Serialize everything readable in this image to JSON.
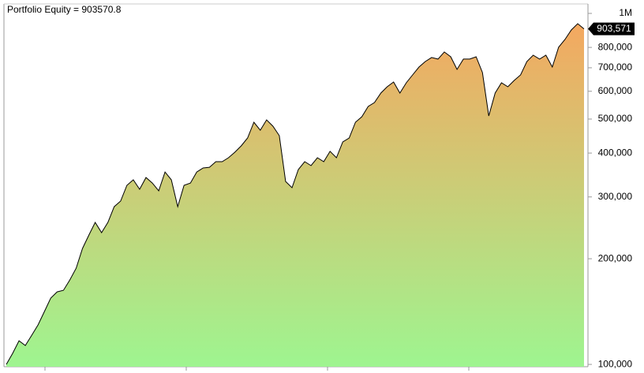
{
  "chart_data": {
    "type": "line",
    "title": "Portfolio Equity = 903570.8",
    "values": [
      100000,
      107500,
      116800,
      113200,
      121100,
      129600,
      141500,
      154500,
      160900,
      162600,
      173900,
      188000,
      213900,
      233600,
      253800,
      237300,
      253800,
      281400,
      291900,
      323700,
      335600,
      315400,
      340800,
      328700,
      312200,
      353400,
      335600,
      281400,
      323700,
      328700,
      353400,
      362700,
      364500,
      378000,
      378000,
      388000,
      402400,
      419400,
      441600,
      489700,
      464800,
      497300,
      477100,
      448500,
      332000,
      318700,
      359000,
      378000,
      368400,
      388000,
      378000,
      404500,
      388000,
      430300,
      441600,
      489700,
      507800,
      543000,
      557300,
      592900,
      618000,
      637500,
      592900,
      634200,
      668000,
      703500,
      729500,
      748700,
      741000,
      776300,
      752500,
      692600,
      741000,
      741000,
      752500,
      678500,
      510400,
      592900,
      634200,
      618000,
      644200,
      668000,
      729500,
      760300,
      741000,
      760300,
      703500,
      800800,
      843000,
      897000,
      935000,
      903570.8
    ],
    "value_labels": [
      null,
      null,
      null,
      null,
      null,
      null,
      null,
      null,
      null,
      null,
      null,
      null,
      null,
      null,
      null,
      null,
      null,
      null,
      null,
      null,
      null,
      null,
      null,
      null,
      null,
      null,
      null,
      null,
      null,
      null,
      null,
      null,
      null,
      null,
      null,
      null,
      null,
      null,
      null,
      null,
      null,
      null,
      null,
      null,
      null,
      null,
      null,
      null,
      null,
      null,
      null,
      null,
      null,
      null,
      null,
      null,
      null,
      null,
      null,
      null,
      null,
      null,
      null,
      null,
      null,
      null,
      null,
      null,
      null,
      null,
      null,
      null,
      null,
      null,
      null,
      null,
      null,
      null,
      null,
      null,
      null,
      null,
      null,
      null,
      null,
      null,
      null,
      null,
      null,
      null,
      null,
      "903,571"
    ],
    "color": "#000000",
    "fill_top": "#f4a860",
    "fill_bottom": "#9ef590",
    "log_scale": true,
    "ylim": [
      98500,
      1064000
    ],
    "yticks": [
      {
        "value": 100000,
        "label": "100,000"
      },
      {
        "value": 200000,
        "label": "200,000"
      },
      {
        "value": 300000,
        "label": "300,000"
      },
      {
        "value": 400000,
        "label": "400,000"
      },
      {
        "value": 500000,
        "label": "500,000"
      },
      {
        "value": 600000,
        "label": "600,000"
      },
      {
        "value": 700000,
        "label": "700,000"
      },
      {
        "value": 800000,
        "label": "800,000"
      },
      {
        "value": 1000000,
        "label": "1M"
      }
    ]
  }
}
